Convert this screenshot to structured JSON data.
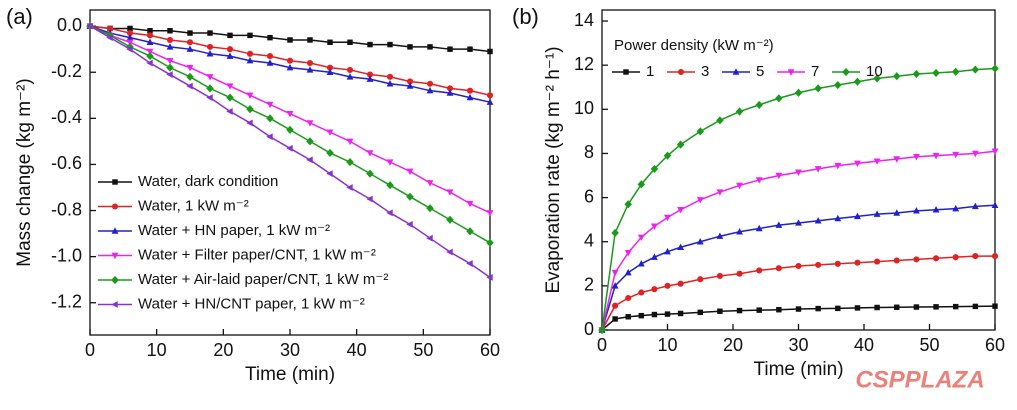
{
  "chart_data": [
    {
      "type": "line",
      "label": "(a)",
      "xlabel": "Time (min)",
      "ylabel": "Mass change (kg m⁻²)",
      "x": [
        0,
        3,
        6,
        9,
        12,
        15,
        18,
        21,
        24,
        27,
        30,
        33,
        36,
        39,
        42,
        45,
        48,
        51,
        54,
        57,
        60
      ],
      "xlim": [
        0,
        60
      ],
      "ylim": [
        -1.34,
        0.07
      ],
      "xticks": [
        0,
        10,
        20,
        30,
        40,
        50,
        60
      ],
      "yticks": [
        {
          "value": 0,
          "label": "0.0"
        },
        -0.2,
        -0.4,
        -0.6,
        -0.8,
        {
          "value": -1,
          "label": "-1.0"
        },
        -1.2
      ],
      "legend": "lower left",
      "series": [
        {
          "name": "Water, dark condition",
          "color": "#111111",
          "marker": "square",
          "values": [
            0,
            -0.01,
            -0.01,
            -0.02,
            -0.02,
            -0.03,
            -0.03,
            -0.04,
            -0.04,
            -0.05,
            -0.06,
            -0.06,
            -0.07,
            -0.07,
            -0.08,
            -0.08,
            -0.09,
            -0.09,
            -0.1,
            -0.1,
            -0.11
          ]
        },
        {
          "name": "Water, 1 kW m⁻²",
          "color": "#e02222",
          "marker": "circle",
          "values": [
            0,
            -0.01,
            -0.03,
            -0.04,
            -0.06,
            -0.07,
            -0.09,
            -0.1,
            -0.12,
            -0.13,
            -0.15,
            -0.16,
            -0.18,
            -0.19,
            -0.21,
            -0.22,
            -0.24,
            -0.25,
            -0.27,
            -0.28,
            -0.3
          ]
        },
        {
          "name": "Water + HN paper, 1 kW m⁻²",
          "color": "#2020cc",
          "marker": "triangle-up",
          "values": [
            0,
            -0.03,
            -0.05,
            -0.07,
            -0.09,
            -0.1,
            -0.12,
            -0.13,
            -0.15,
            -0.16,
            -0.18,
            -0.19,
            -0.2,
            -0.22,
            -0.23,
            -0.25,
            -0.26,
            -0.28,
            -0.29,
            -0.31,
            -0.33
          ]
        },
        {
          "name": "Water + Filter paper/CNT, 1 kW m⁻²",
          "color": "#ee22ee",
          "marker": "triangle-down",
          "values": [
            0,
            -0.04,
            -0.07,
            -0.11,
            -0.15,
            -0.18,
            -0.22,
            -0.26,
            -0.3,
            -0.34,
            -0.38,
            -0.42,
            -0.46,
            -0.5,
            -0.55,
            -0.59,
            -0.63,
            -0.68,
            -0.72,
            -0.77,
            -0.81
          ]
        },
        {
          "name": "Water + Air-laid paper/CNT, 1 kW m⁻²",
          "color": "#1a991a",
          "marker": "diamond",
          "values": [
            0,
            -0.04,
            -0.09,
            -0.13,
            -0.18,
            -0.22,
            -0.27,
            -0.31,
            -0.36,
            -0.4,
            -0.45,
            -0.5,
            -0.55,
            -0.59,
            -0.64,
            -0.69,
            -0.74,
            -0.79,
            -0.84,
            -0.89,
            -0.94
          ]
        },
        {
          "name": "Water + HN/CNT paper, 1 kW m⁻²",
          "color": "#8833cc",
          "marker": "triangle-left",
          "values": [
            0,
            -0.05,
            -0.1,
            -0.16,
            -0.21,
            -0.26,
            -0.31,
            -0.37,
            -0.42,
            -0.48,
            -0.53,
            -0.58,
            -0.64,
            -0.7,
            -0.75,
            -0.81,
            -0.86,
            -0.92,
            -0.98,
            -1.03,
            -1.09
          ]
        }
      ]
    },
    {
      "type": "line",
      "label": "(b)",
      "xlabel": "Time (min)",
      "ylabel": "Evaporation rate (kg m⁻² h⁻¹)",
      "legend_title": "Power density (kW m⁻²)",
      "x": [
        0,
        2,
        4,
        6,
        8,
        10,
        12,
        15,
        18,
        21,
        24,
        27,
        30,
        33,
        36,
        39,
        42,
        45,
        48,
        51,
        54,
        57,
        60
      ],
      "xlim": [
        0,
        60
      ],
      "ylim": [
        0,
        14.5
      ],
      "xticks": [
        0,
        10,
        20,
        30,
        40,
        50,
        60
      ],
      "yticks": [
        0,
        2,
        4,
        6,
        8,
        10,
        12,
        14
      ],
      "legend": "upper left",
      "series": [
        {
          "name": "1",
          "color": "#111111",
          "marker": "square",
          "values": [
            0,
            0.5,
            0.6,
            0.65,
            0.7,
            0.72,
            0.75,
            0.8,
            0.85,
            0.88,
            0.9,
            0.92,
            0.95,
            0.97,
            0.98,
            1.0,
            1.02,
            1.03,
            1.04,
            1.05,
            1.06,
            1.07,
            1.08
          ]
        },
        {
          "name": "3",
          "color": "#e02222",
          "marker": "circle",
          "values": [
            0,
            1.1,
            1.45,
            1.7,
            1.85,
            2.0,
            2.1,
            2.3,
            2.45,
            2.55,
            2.7,
            2.8,
            2.9,
            2.95,
            3.0,
            3.05,
            3.1,
            3.15,
            3.2,
            3.25,
            3.3,
            3.35,
            3.35
          ]
        },
        {
          "name": "5",
          "color": "#2020cc",
          "marker": "triangle-up",
          "values": [
            0,
            2.0,
            2.6,
            3.0,
            3.3,
            3.55,
            3.75,
            4.0,
            4.25,
            4.45,
            4.6,
            4.75,
            4.85,
            4.95,
            5.05,
            5.15,
            5.25,
            5.3,
            5.4,
            5.45,
            5.5,
            5.6,
            5.65
          ]
        },
        {
          "name": "7",
          "color": "#ee22ee",
          "marker": "triangle-down",
          "values": [
            0,
            2.6,
            3.5,
            4.2,
            4.7,
            5.1,
            5.45,
            5.9,
            6.25,
            6.55,
            6.8,
            7.0,
            7.15,
            7.3,
            7.45,
            7.55,
            7.65,
            7.75,
            7.85,
            7.9,
            7.95,
            8.0,
            8.1
          ]
        },
        {
          "name": "10",
          "color": "#1a991a",
          "marker": "diamond",
          "values": [
            0,
            4.4,
            5.7,
            6.6,
            7.3,
            7.9,
            8.4,
            9.0,
            9.5,
            9.9,
            10.2,
            10.5,
            10.75,
            10.95,
            11.1,
            11.25,
            11.4,
            11.5,
            11.6,
            11.65,
            11.7,
            11.8,
            11.85
          ]
        }
      ]
    }
  ],
  "watermark": "CSPPLAZA"
}
